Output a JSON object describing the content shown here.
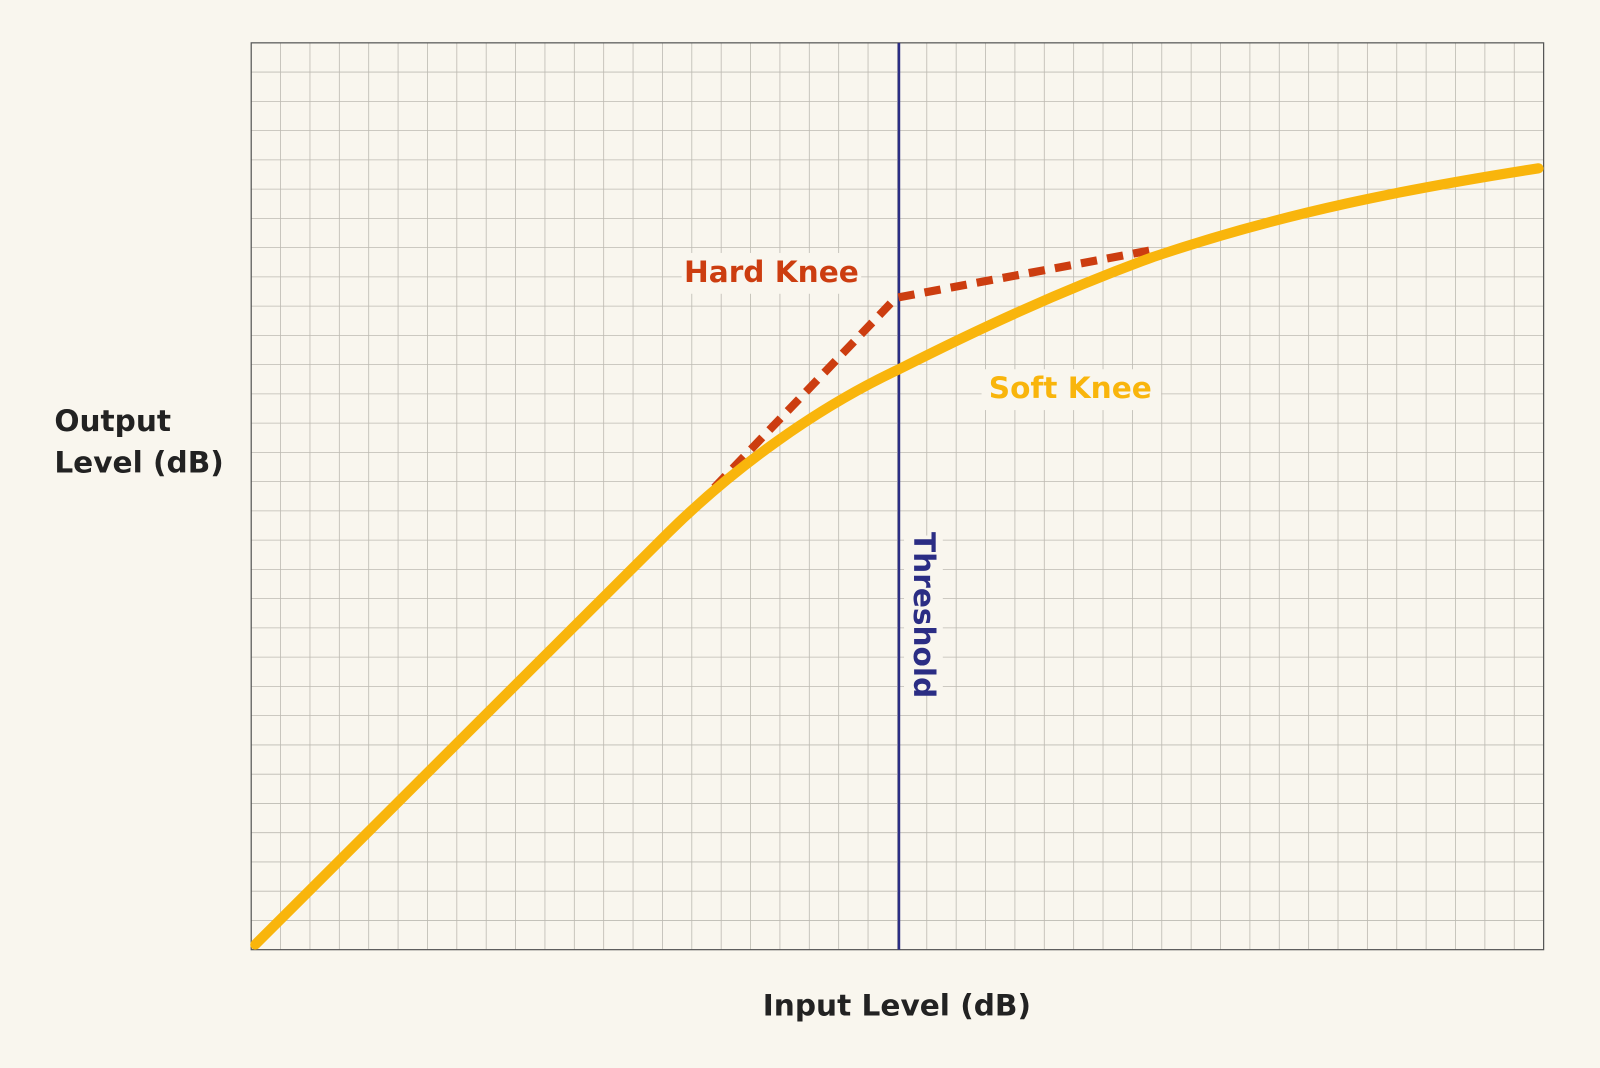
{
  "y_axis_label": [
    "Output",
    "Level (dB)"
  ],
  "x_axis_label": "Input Level (dB)",
  "curves": {
    "hard_knee": "Hard Knee",
    "soft_knee": "Soft Knee"
  },
  "threshold_label": "Threshold"
}
